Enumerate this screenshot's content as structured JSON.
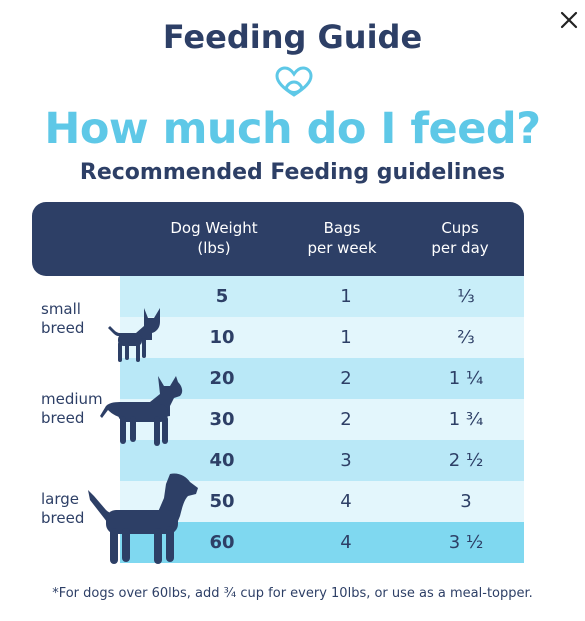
{
  "title": "Feeding Guide",
  "headline": "How much do I feed?",
  "subtitle": "Recommended Feeding guidelines",
  "icons": {
    "close": "close-icon",
    "logo": "heart-logo-icon"
  },
  "colors": {
    "navy": "#2d3f66",
    "accent": "#5ec8e7",
    "row_colors": [
      "#c9eef9",
      "#e3f6fc",
      "#b9e8f7",
      "#e3f6fc",
      "#b9e8f7",
      "#e3f6fc",
      "#7fd8f0"
    ]
  },
  "table": {
    "columns": {
      "weight": [
        "Dog Weight",
        "(lbs)"
      ],
      "bags": [
        "Bags",
        "per week"
      ],
      "cups": [
        "Cups",
        "per day"
      ]
    },
    "rows": [
      {
        "weight": "5",
        "bags": "1",
        "cups": "⅓"
      },
      {
        "weight": "10",
        "bags": "1",
        "cups": "⅔"
      },
      {
        "weight": "20",
        "bags": "2",
        "cups": "1 ¼"
      },
      {
        "weight": "30",
        "bags": "2",
        "cups": "1 ¾"
      },
      {
        "weight": "40",
        "bags": "3",
        "cups": "2 ½"
      },
      {
        "weight": "50",
        "bags": "4",
        "cups": "3"
      },
      {
        "weight": "60",
        "bags": "4",
        "cups": "3 ½"
      }
    ]
  },
  "breeds": {
    "small": [
      "small",
      "breed"
    ],
    "medium": [
      "medium",
      "breed"
    ],
    "large": [
      "large",
      "breed"
    ]
  },
  "footnote": "*For dogs over 60lbs, add ¾ cup for every 10lbs, or use as a meal-topper."
}
